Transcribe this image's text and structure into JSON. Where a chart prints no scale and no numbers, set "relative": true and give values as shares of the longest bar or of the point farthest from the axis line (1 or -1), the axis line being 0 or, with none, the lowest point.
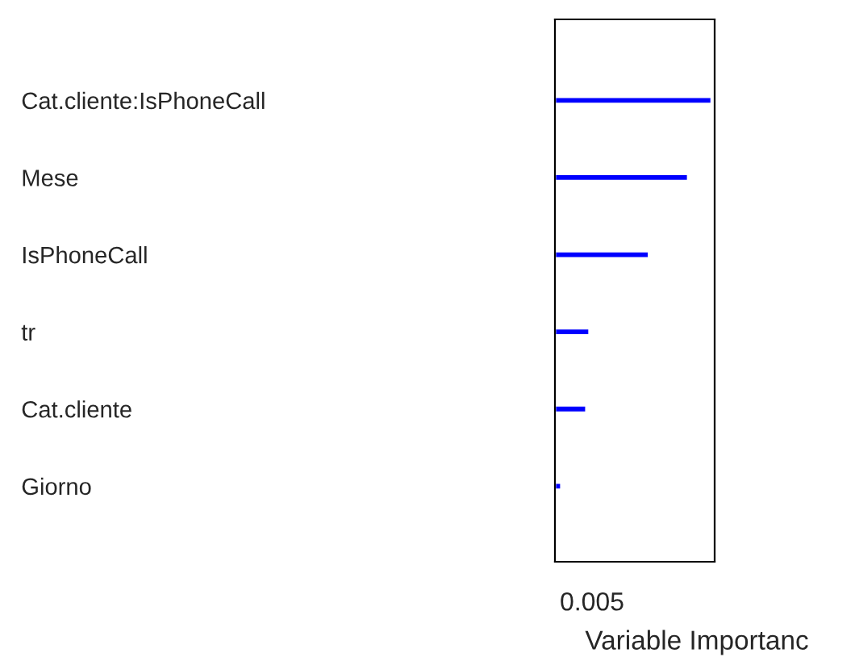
{
  "chart_data": {
    "type": "bar",
    "orientation": "horizontal",
    "relative": true,
    "xlabel": "Variable Importanc",
    "categories": [
      "Cat.cliente:IsPhoneCall",
      "Mese",
      "IsPhoneCall",
      "tr",
      "Cat.cliente",
      "Giorno"
    ],
    "values": [
      1,
      0.85,
      0.6,
      0.22,
      0.2,
      0.04
    ],
    "color": "#0000ff",
    "annotations": [
      "0.005"
    ],
    "grid": false,
    "legend": false
  }
}
